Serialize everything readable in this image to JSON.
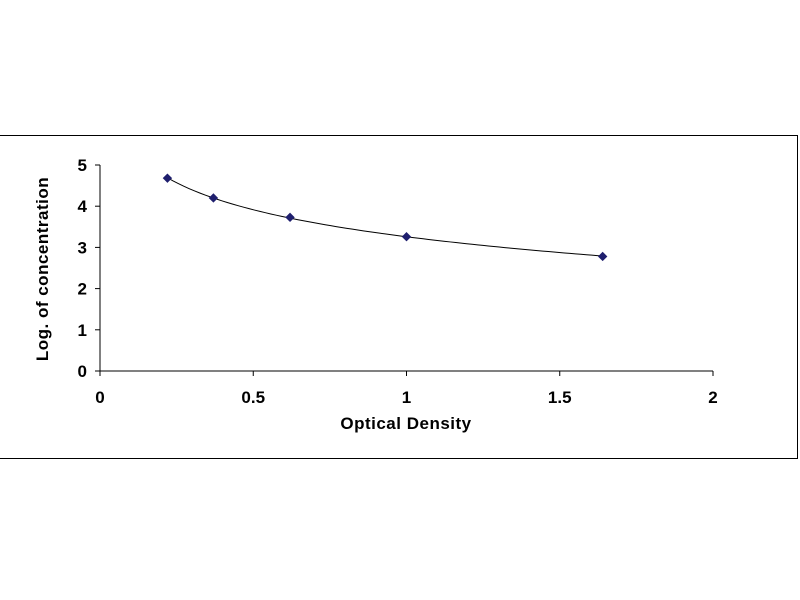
{
  "chart_data": {
    "type": "scatter",
    "title": "",
    "xlabel": "Optical Density",
    "ylabel": "Log. of concentration",
    "xlim": [
      0,
      2
    ],
    "ylim": [
      0,
      5
    ],
    "x_ticks": [
      "0",
      "0.5",
      "1",
      "1.5",
      "2"
    ],
    "y_ticks": [
      "0",
      "1",
      "2",
      "3",
      "4",
      "5"
    ],
    "grid": false,
    "legend": "none",
    "series": [
      {
        "x": [
          0.22,
          0.37,
          0.62,
          1.0,
          1.64
        ],
        "y": [
          4.68,
          4.2,
          3.73,
          3.26,
          2.78
        ],
        "marker": "diamond",
        "color": "#1f1f6e",
        "fit_line": true
      }
    ]
  }
}
